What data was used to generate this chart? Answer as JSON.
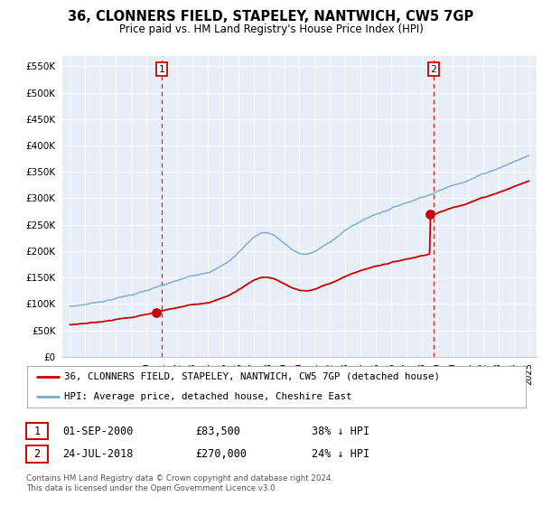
{
  "title": "36, CLONNERS FIELD, STAPELEY, NANTWICH, CW5 7GP",
  "subtitle": "Price paid vs. HM Land Registry's House Price Index (HPI)",
  "legend_property": "36, CLONNERS FIELD, STAPELEY, NANTWICH, CW5 7GP (detached house)",
  "legend_hpi": "HPI: Average price, detached house, Cheshire East",
  "property_color": "#cc0000",
  "hpi_color": "#7aabcc",
  "annotation1_date": "01-SEP-2000",
  "annotation1_price": "£83,500",
  "annotation1_hpi": "38% ↓ HPI",
  "annotation2_date": "24-JUL-2018",
  "annotation2_price": "£270,000",
  "annotation2_hpi": "24% ↓ HPI",
  "sale1_year": 2000.67,
  "sale1_price": 83500,
  "sale2_year": 2018.56,
  "sale2_price": 270000,
  "vline1_year": 2001.0,
  "vline2_year": 2018.75,
  "ylim_max": 570000,
  "ylabel_ticks": [
    0,
    50000,
    100000,
    150000,
    200000,
    250000,
    300000,
    350000,
    400000,
    450000,
    500000,
    550000
  ],
  "ylabel_labels": [
    "£0",
    "£50K",
    "£100K",
    "£150K",
    "£200K",
    "£250K",
    "£300K",
    "£350K",
    "£400K",
    "£450K",
    "£500K",
    "£550K"
  ],
  "footer_text": "Contains HM Land Registry data © Crown copyright and database right 2024.\nThis data is licensed under the Open Government Licence v3.0.",
  "background_color": "#e8eef8",
  "fig_bg_color": "#ffffff"
}
